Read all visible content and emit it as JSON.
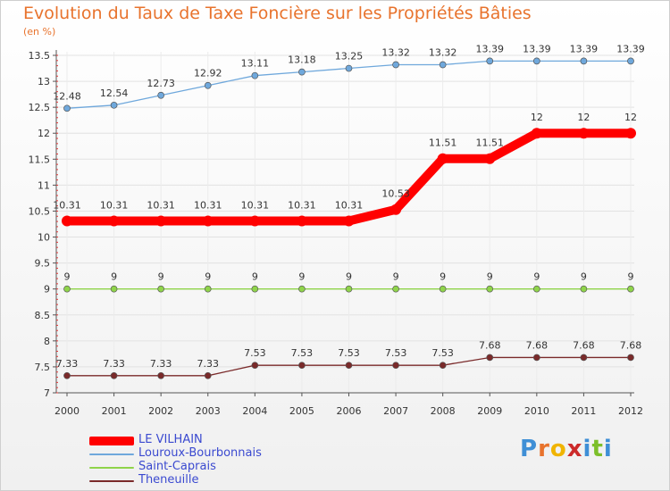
{
  "header": {
    "title": "Evolution du Taux de Taxe Foncière sur les Propriétés Bâties",
    "unit": "(en %)"
  },
  "logo": {
    "letters": [
      "P",
      "r",
      "o",
      "x",
      "i",
      "t",
      "i"
    ],
    "colors": [
      "#3f8fd6",
      "#e8732d",
      "#f0b400",
      "#cc2a2a",
      "#3f8fd6",
      "#7dbf2a",
      "#3f8fd6"
    ]
  },
  "chart_data": {
    "type": "line",
    "title": "Evolution du Taux de Taxe Foncière sur les Propriétés Bâties",
    "ylabel": "(en %)",
    "x": [
      "2000",
      "2001",
      "2002",
      "2003",
      "2004",
      "2005",
      "2006",
      "2007",
      "2008",
      "2009",
      "2010",
      "2011",
      "2012"
    ],
    "ylim": [
      7,
      13.5
    ],
    "yticks": [
      7,
      7.5,
      8,
      8.5,
      9,
      9.5,
      10,
      10.5,
      11,
      11.5,
      12,
      12.5,
      13,
      13.5
    ],
    "legend_position": "bottom-left",
    "series": [
      {
        "name": "LE VILHAIN",
        "color": "#ff0000",
        "values": [
          10.31,
          10.31,
          10.31,
          10.31,
          10.31,
          10.31,
          10.31,
          10.53,
          11.51,
          11.51,
          12,
          12,
          12
        ],
        "labels": [
          "10.31",
          "10.31",
          "10.31",
          "10.31",
          "10.31",
          "10.31",
          "10.31",
          "10.53",
          "11.51",
          "11.51",
          "12",
          "12",
          "12"
        ]
      },
      {
        "name": "Louroux-Bourbonnais",
        "color": "#6fa8dc",
        "values": [
          12.48,
          12.54,
          12.73,
          12.92,
          13.11,
          13.18,
          13.25,
          13.32,
          13.32,
          13.39,
          13.39,
          13.39,
          13.39
        ],
        "labels": [
          "12.48",
          "12.54",
          "12.73",
          "12.92",
          "13.11",
          "13.18",
          "13.25",
          "13.32",
          "13.32",
          "13.39",
          "13.39",
          "13.39",
          "13.39"
        ]
      },
      {
        "name": "Saint-Caprais",
        "color": "#8fd44a",
        "values": [
          9,
          9,
          9,
          9,
          9,
          9,
          9,
          9,
          9,
          9,
          9,
          9,
          9
        ],
        "labels": [
          "9",
          "9",
          "9",
          "9",
          "9",
          "9",
          "9",
          "9",
          "9",
          "9",
          "9",
          "9",
          "9"
        ]
      },
      {
        "name": "Theneuille",
        "color": "#7a2a2a",
        "values": [
          7.33,
          7.33,
          7.33,
          7.33,
          7.53,
          7.53,
          7.53,
          7.53,
          7.53,
          7.68,
          7.68,
          7.68,
          7.68
        ],
        "labels": [
          "7.33",
          "7.33",
          "7.33",
          "7.33",
          "7.53",
          "7.53",
          "7.53",
          "7.53",
          "7.53",
          "7.68",
          "7.68",
          "7.68",
          "7.68"
        ]
      }
    ]
  }
}
